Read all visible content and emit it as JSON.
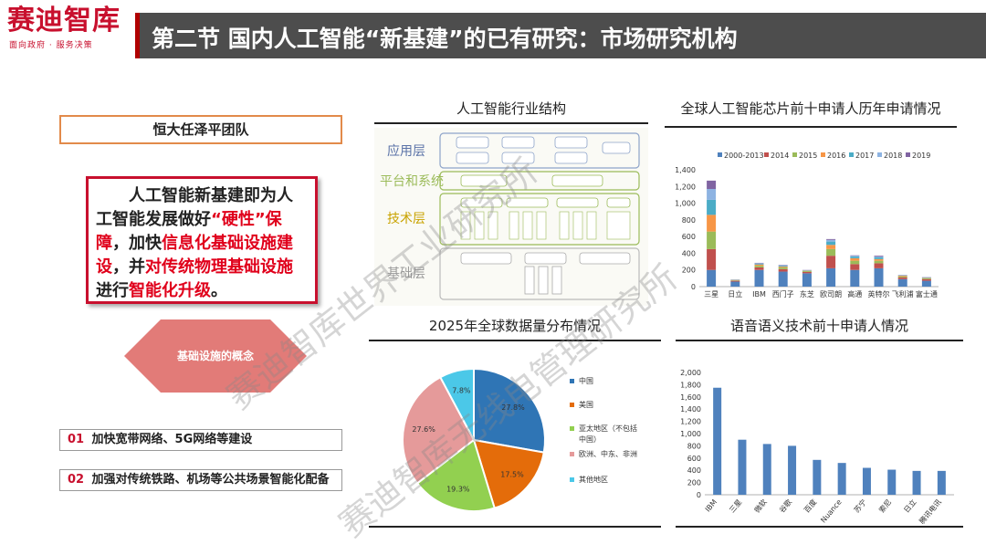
{
  "header": {
    "logo": "赛迪智库",
    "logo_sub": "面向政府 · 服务决策",
    "title": "第二节 国内人工智能“新基建”的已有研究：市场研究机构"
  },
  "left": {
    "team": "恒大任泽平团队",
    "main_text": {
      "p1": "人工智能新基建即为人工智能发展做好",
      "p2": "“硬性”保障",
      "p3": "，加快",
      "p4": "信息化基础设施建设",
      "p5": "，并",
      "p6": "对传统物理基础设施",
      "p7": "进行",
      "p8": "智能化升级",
      "p9": "。"
    },
    "diamond_label": "基础设施的概念",
    "items": [
      {
        "num": "01",
        "text": "加快宽带网络、5G网络等建设"
      },
      {
        "num": "02",
        "text": "加强对传统铁路、机场等公共场景智能化配备"
      }
    ]
  },
  "panels": {
    "structure": {
      "title": "人工智能行业结构",
      "layers": [
        "应用层",
        "平台和系统",
        "技术层",
        "基础层"
      ]
    },
    "chip": {
      "title": "全球人工智能芯片前十申请人历年申请情况"
    },
    "pie": {
      "title": "2025年全球数据量分布情况"
    },
    "speech": {
      "title": "语音语义技术前十申请人情况"
    }
  },
  "chart_data": [
    {
      "type": "bar",
      "title": "全球人工智能芯片前十申请人历年申请情况",
      "stacked": true,
      "categories": [
        "三星",
        "日立",
        "IBM",
        "西门子",
        "东芝",
        "欧司朗",
        "高通",
        "英特尔",
        "飞利浦",
        "富士通"
      ],
      "ylim": [
        0,
        1400
      ],
      "yticks": [
        0,
        200,
        400,
        600,
        800,
        1000,
        1200,
        1400
      ],
      "legend": "top",
      "series": [
        {
          "name": "2000-2013",
          "color": "#4f81bd",
          "values": [
            200,
            60,
            200,
            180,
            160,
            220,
            200,
            220,
            90,
            70
          ]
        },
        {
          "name": "2014",
          "color": "#c0504d",
          "values": [
            250,
            10,
            30,
            30,
            15,
            150,
            70,
            60,
            20,
            20
          ]
        },
        {
          "name": "2015",
          "color": "#9bbb59",
          "values": [
            210,
            5,
            20,
            20,
            10,
            80,
            40,
            30,
            10,
            10
          ]
        },
        {
          "name": "2016",
          "color": "#f79646",
          "values": [
            200,
            5,
            15,
            10,
            5,
            50,
            30,
            20,
            10,
            5
          ]
        },
        {
          "name": "2017",
          "color": "#4bacc6",
          "values": [
            180,
            3,
            10,
            10,
            5,
            40,
            20,
            20,
            5,
            5
          ]
        },
        {
          "name": "2018",
          "color": "#8db3e2",
          "values": [
            130,
            2,
            5,
            5,
            3,
            20,
            10,
            10,
            3,
            3
          ]
        },
        {
          "name": "2019",
          "color": "#8064a2",
          "values": [
            100,
            1,
            5,
            5,
            2,
            10,
            5,
            10,
            2,
            2
          ]
        }
      ]
    },
    {
      "type": "pie",
      "title": "2025年全球数据量分布情况",
      "legend": "right",
      "series": [
        {
          "name": "中国",
          "value": 27.8,
          "label": "27.8%",
          "color": "#2f75b5"
        },
        {
          "name": "美国",
          "value": 17.5,
          "label": "17.5%",
          "color": "#e46c0a"
        },
        {
          "name": "亚太地区（不包括中国）",
          "value": 19.3,
          "label": "19.3%",
          "color": "#92d050"
        },
        {
          "name": "欧洲、中东、非洲",
          "value": 27.6,
          "label": "27.6%",
          "color": "#e59a9a"
        },
        {
          "name": "其他地区",
          "value": 7.8,
          "label": "7.8%",
          "color": "#4bc8e8"
        }
      ]
    },
    {
      "type": "bar",
      "title": "语音语义技术前十申请人情况",
      "categories": [
        "IBM",
        "三星",
        "微软",
        "谷歌",
        "百度",
        "Nuance",
        "苏宁",
        "索尼",
        "日立",
        "腾讯电讯"
      ],
      "values": [
        1750,
        900,
        830,
        800,
        570,
        520,
        440,
        410,
        390,
        390
      ],
      "ylim": [
        0,
        2000
      ],
      "yticks": [
        0,
        200,
        400,
        600,
        800,
        1000,
        1200,
        1400,
        1600,
        1800,
        2000
      ],
      "color": "#4f81bd"
    }
  ],
  "watermark": [
    "赛迪智库世界工业研究所",
    "赛迪智库无线电管理研究所"
  ]
}
